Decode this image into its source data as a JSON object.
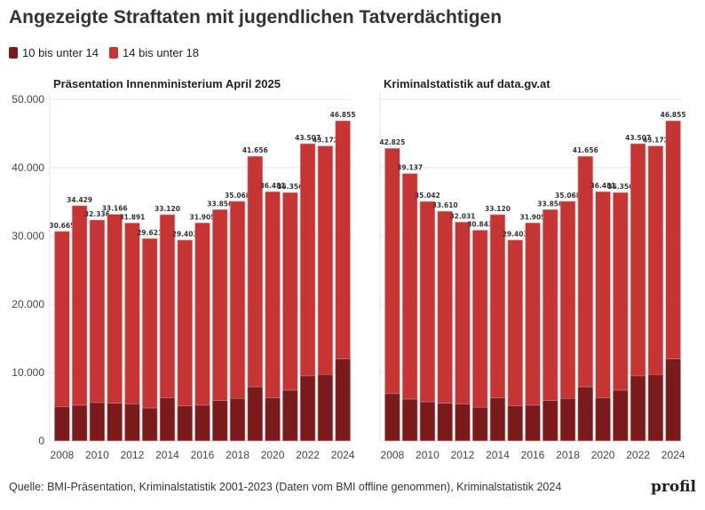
{
  "title": "Angezeigte Straftaten mit jugendlichen Tatverdächtigen",
  "legend": [
    {
      "label": "10 bis unter 14",
      "color": "#7b1a1a"
    },
    {
      "label": "14 bis unter 18",
      "color": "#c73434"
    }
  ],
  "source": "Quelle: BMI-Präsentation, Kriminalstatistik 2001-2023 (Daten vom BMI offline genommen), Kriminalstatistik 2024",
  "logo": "profil",
  "chart_data": [
    {
      "type": "bar",
      "stacked": true,
      "title": "Präsentation Innenministerium April 2025",
      "categories": [
        2008,
        2009,
        2010,
        2011,
        2012,
        2013,
        2014,
        2015,
        2016,
        2017,
        2018,
        2019,
        2020,
        2021,
        2022,
        2023,
        2024
      ],
      "xticks": [
        "2008",
        "2010",
        "2012",
        "2014",
        "2016",
        "2018",
        "2020",
        "2022",
        "2024"
      ],
      "yticks": [
        "0",
        "10.000",
        "20.000",
        "30.000",
        "40.000",
        "50.000"
      ],
      "ylim": [
        0,
        50000
      ],
      "totals": [
        30665,
        34429,
        32336,
        33166,
        31891,
        29621,
        33120,
        29403,
        31905,
        33856,
        35068,
        41656,
        36481,
        36356,
        43507,
        43172,
        46855
      ],
      "total_labels": [
        "30.665",
        "34.429",
        "32.336",
        "33.166",
        "31.891",
        "29.621",
        "33.120",
        "29.403",
        "31.905",
        "33.856",
        "35.068",
        "41.656",
        "36.481",
        "36.356",
        "43.507",
        "43.172",
        "46.855"
      ],
      "series": [
        {
          "name": "10 bis unter 14",
          "values": [
            5000,
            5200,
            5600,
            5500,
            5400,
            4800,
            6300,
            5100,
            5200,
            5900,
            6200,
            7900,
            6300,
            7400,
            9500,
            9700,
            12000
          ]
        }
      ]
    },
    {
      "type": "bar",
      "stacked": true,
      "title": "Kriminalstatistik auf data.gv.at",
      "categories": [
        2008,
        2009,
        2010,
        2011,
        2012,
        2013,
        2014,
        2015,
        2016,
        2017,
        2018,
        2019,
        2020,
        2021,
        2022,
        2023,
        2024
      ],
      "xticks": [
        "2008",
        "2010",
        "2012",
        "2014",
        "2016",
        "2018",
        "2020",
        "2022",
        "2024"
      ],
      "ylim": [
        0,
        50000
      ],
      "totals": [
        42825,
        39137,
        35042,
        33610,
        32031,
        30843,
        33120,
        29403,
        31905,
        33856,
        35068,
        41656,
        36481,
        36356,
        43507,
        43172,
        46855
      ],
      "total_labels": [
        "42.825",
        "39.137",
        "35.042",
        "33.610",
        "32.031",
        "30.843",
        "33.120",
        "29.403",
        "31.905",
        "33.856",
        "35.068",
        "41.656",
        "36.481",
        "36.356",
        "43.507",
        "43.172",
        "46.855"
      ],
      "series": [
        {
          "name": "10 bis unter 14",
          "values": [
            6900,
            6100,
            5700,
            5500,
            5400,
            4900,
            6300,
            5100,
            5200,
            5900,
            6200,
            7900,
            6300,
            7400,
            9500,
            9700,
            12000
          ]
        }
      ]
    }
  ]
}
